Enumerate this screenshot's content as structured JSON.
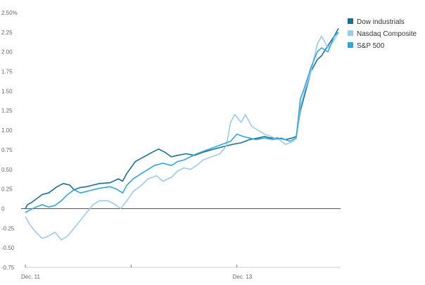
{
  "chart_data": {
    "type": "line",
    "title": "",
    "xlabel": "",
    "ylabel": "",
    "ylim": [
      -0.75,
      2.5
    ],
    "grid": false,
    "legend_position": "top-right",
    "y_ticks": [
      {
        "value": 2.5,
        "label": "2.50%"
      },
      {
        "value": 2.25,
        "label": "2.25"
      },
      {
        "value": 2.0,
        "label": "2.00"
      },
      {
        "value": 1.75,
        "label": "1.75"
      },
      {
        "value": 1.5,
        "label": "1.50"
      },
      {
        "value": 1.25,
        "label": "1.25"
      },
      {
        "value": 1.0,
        "label": "1.00"
      },
      {
        "value": 0.75,
        "label": "0.75"
      },
      {
        "value": 0.5,
        "label": "0.50"
      },
      {
        "value": 0.25,
        "label": "0.25"
      },
      {
        "value": 0,
        "label": "0"
      },
      {
        "value": -0.25,
        "label": "-0.25"
      },
      {
        "value": -0.5,
        "label": "-0.50"
      },
      {
        "value": -0.75,
        "label": "-0.75"
      }
    ],
    "x_ticks": [
      {
        "x": 0,
        "label": "Dec. 11"
      },
      {
        "x": 1,
        "label": ""
      },
      {
        "x": 2,
        "label": "Dec. 13"
      }
    ],
    "x_range": [
      0,
      2.98
    ],
    "series": [
      {
        "name": "Dow industrials",
        "color": "#1a6e94",
        "points": [
          [
            0,
            0.0
          ],
          [
            0.02,
            0.05
          ],
          [
            0.06,
            0.08
          ],
          [
            0.1,
            0.12
          ],
          [
            0.16,
            0.18
          ],
          [
            0.22,
            0.2
          ],
          [
            0.3,
            0.28
          ],
          [
            0.36,
            0.32
          ],
          [
            0.42,
            0.3
          ],
          [
            0.46,
            0.24
          ],
          [
            0.52,
            0.27
          ],
          [
            0.58,
            0.28
          ],
          [
            0.64,
            0.3
          ],
          [
            0.7,
            0.32
          ],
          [
            0.8,
            0.33
          ],
          [
            0.88,
            0.38
          ],
          [
            0.92,
            0.35
          ],
          [
            0.96,
            0.45
          ],
          [
            1.04,
            0.6
          ],
          [
            1.12,
            0.66
          ],
          [
            1.2,
            0.72
          ],
          [
            1.26,
            0.76
          ],
          [
            1.32,
            0.72
          ],
          [
            1.38,
            0.66
          ],
          [
            1.44,
            0.68
          ],
          [
            1.52,
            0.7
          ],
          [
            1.6,
            0.68
          ],
          [
            1.68,
            0.72
          ],
          [
            1.76,
            0.75
          ],
          [
            1.84,
            0.78
          ],
          [
            1.9,
            0.8
          ],
          [
            1.96,
            0.82
          ],
          [
            2.04,
            0.84
          ],
          [
            2.12,
            0.88
          ],
          [
            2.2,
            0.9
          ],
          [
            2.26,
            0.92
          ],
          [
            2.32,
            0.9
          ],
          [
            2.38,
            0.9
          ],
          [
            2.46,
            0.88
          ],
          [
            2.52,
            0.9
          ],
          [
            2.56,
            0.92
          ],
          [
            2.6,
            1.25
          ],
          [
            2.64,
            1.45
          ],
          [
            2.7,
            1.75
          ],
          [
            2.76,
            1.9
          ],
          [
            2.8,
            1.95
          ],
          [
            2.86,
            2.08
          ],
          [
            2.92,
            2.2
          ],
          [
            2.96,
            2.3
          ]
        ]
      },
      {
        "name": "Nasdaq Composite",
        "color": "#9ccbe8",
        "points": [
          [
            0,
            -0.1
          ],
          [
            0.04,
            -0.2
          ],
          [
            0.1,
            -0.3
          ],
          [
            0.16,
            -0.38
          ],
          [
            0.22,
            -0.35
          ],
          [
            0.28,
            -0.3
          ],
          [
            0.34,
            -0.4
          ],
          [
            0.4,
            -0.35
          ],
          [
            0.46,
            -0.25
          ],
          [
            0.52,
            -0.15
          ],
          [
            0.58,
            -0.05
          ],
          [
            0.64,
            0.05
          ],
          [
            0.7,
            0.1
          ],
          [
            0.78,
            0.1
          ],
          [
            0.84,
            0.06
          ],
          [
            0.9,
            0.0
          ],
          [
            0.96,
            0.1
          ],
          [
            1.02,
            0.22
          ],
          [
            1.1,
            0.3
          ],
          [
            1.16,
            0.38
          ],
          [
            1.24,
            0.42
          ],
          [
            1.3,
            0.35
          ],
          [
            1.38,
            0.4
          ],
          [
            1.44,
            0.48
          ],
          [
            1.5,
            0.52
          ],
          [
            1.56,
            0.5
          ],
          [
            1.62,
            0.55
          ],
          [
            1.68,
            0.62
          ],
          [
            1.76,
            0.66
          ],
          [
            1.84,
            0.7
          ],
          [
            1.9,
            0.8
          ],
          [
            1.94,
            1.1
          ],
          [
            1.98,
            1.2
          ],
          [
            2.04,
            1.1
          ],
          [
            2.08,
            1.2
          ],
          [
            2.14,
            1.05
          ],
          [
            2.2,
            1.0
          ],
          [
            2.26,
            0.95
          ],
          [
            2.32,
            0.92
          ],
          [
            2.4,
            0.88
          ],
          [
            2.46,
            0.82
          ],
          [
            2.52,
            0.85
          ],
          [
            2.56,
            0.9
          ],
          [
            2.6,
            1.3
          ],
          [
            2.64,
            1.5
          ],
          [
            2.7,
            1.75
          ],
          [
            2.76,
            2.1
          ],
          [
            2.8,
            2.2
          ],
          [
            2.86,
            2.05
          ],
          [
            2.92,
            2.15
          ],
          [
            2.96,
            2.25
          ]
        ]
      },
      {
        "name": "S&P 500",
        "color": "#2ea7df",
        "points": [
          [
            0,
            -0.05
          ],
          [
            0.04,
            -0.02
          ],
          [
            0.1,
            0.02
          ],
          [
            0.16,
            0.05
          ],
          [
            0.22,
            0.02
          ],
          [
            0.28,
            0.04
          ],
          [
            0.34,
            0.1
          ],
          [
            0.4,
            0.18
          ],
          [
            0.46,
            0.24
          ],
          [
            0.52,
            0.2
          ],
          [
            0.58,
            0.22
          ],
          [
            0.64,
            0.24
          ],
          [
            0.7,
            0.26
          ],
          [
            0.8,
            0.28
          ],
          [
            0.86,
            0.25
          ],
          [
            0.92,
            0.2
          ],
          [
            0.96,
            0.3
          ],
          [
            1.02,
            0.38
          ],
          [
            1.1,
            0.45
          ],
          [
            1.16,
            0.5
          ],
          [
            1.22,
            0.55
          ],
          [
            1.3,
            0.58
          ],
          [
            1.38,
            0.55
          ],
          [
            1.44,
            0.6
          ],
          [
            1.5,
            0.62
          ],
          [
            1.56,
            0.66
          ],
          [
            1.62,
            0.7
          ],
          [
            1.7,
            0.74
          ],
          [
            1.78,
            0.78
          ],
          [
            1.86,
            0.82
          ],
          [
            1.94,
            0.86
          ],
          [
            2.0,
            0.95
          ],
          [
            2.06,
            0.92
          ],
          [
            2.12,
            0.9
          ],
          [
            2.18,
            0.88
          ],
          [
            2.26,
            0.9
          ],
          [
            2.34,
            0.88
          ],
          [
            2.42,
            0.9
          ],
          [
            2.5,
            0.86
          ],
          [
            2.56,
            0.9
          ],
          [
            2.6,
            1.4
          ],
          [
            2.64,
            1.55
          ],
          [
            2.7,
            1.8
          ],
          [
            2.76,
            2.0
          ],
          [
            2.8,
            2.05
          ],
          [
            2.86,
            2.0
          ],
          [
            2.92,
            2.2
          ],
          [
            2.96,
            2.25
          ]
        ]
      }
    ]
  }
}
